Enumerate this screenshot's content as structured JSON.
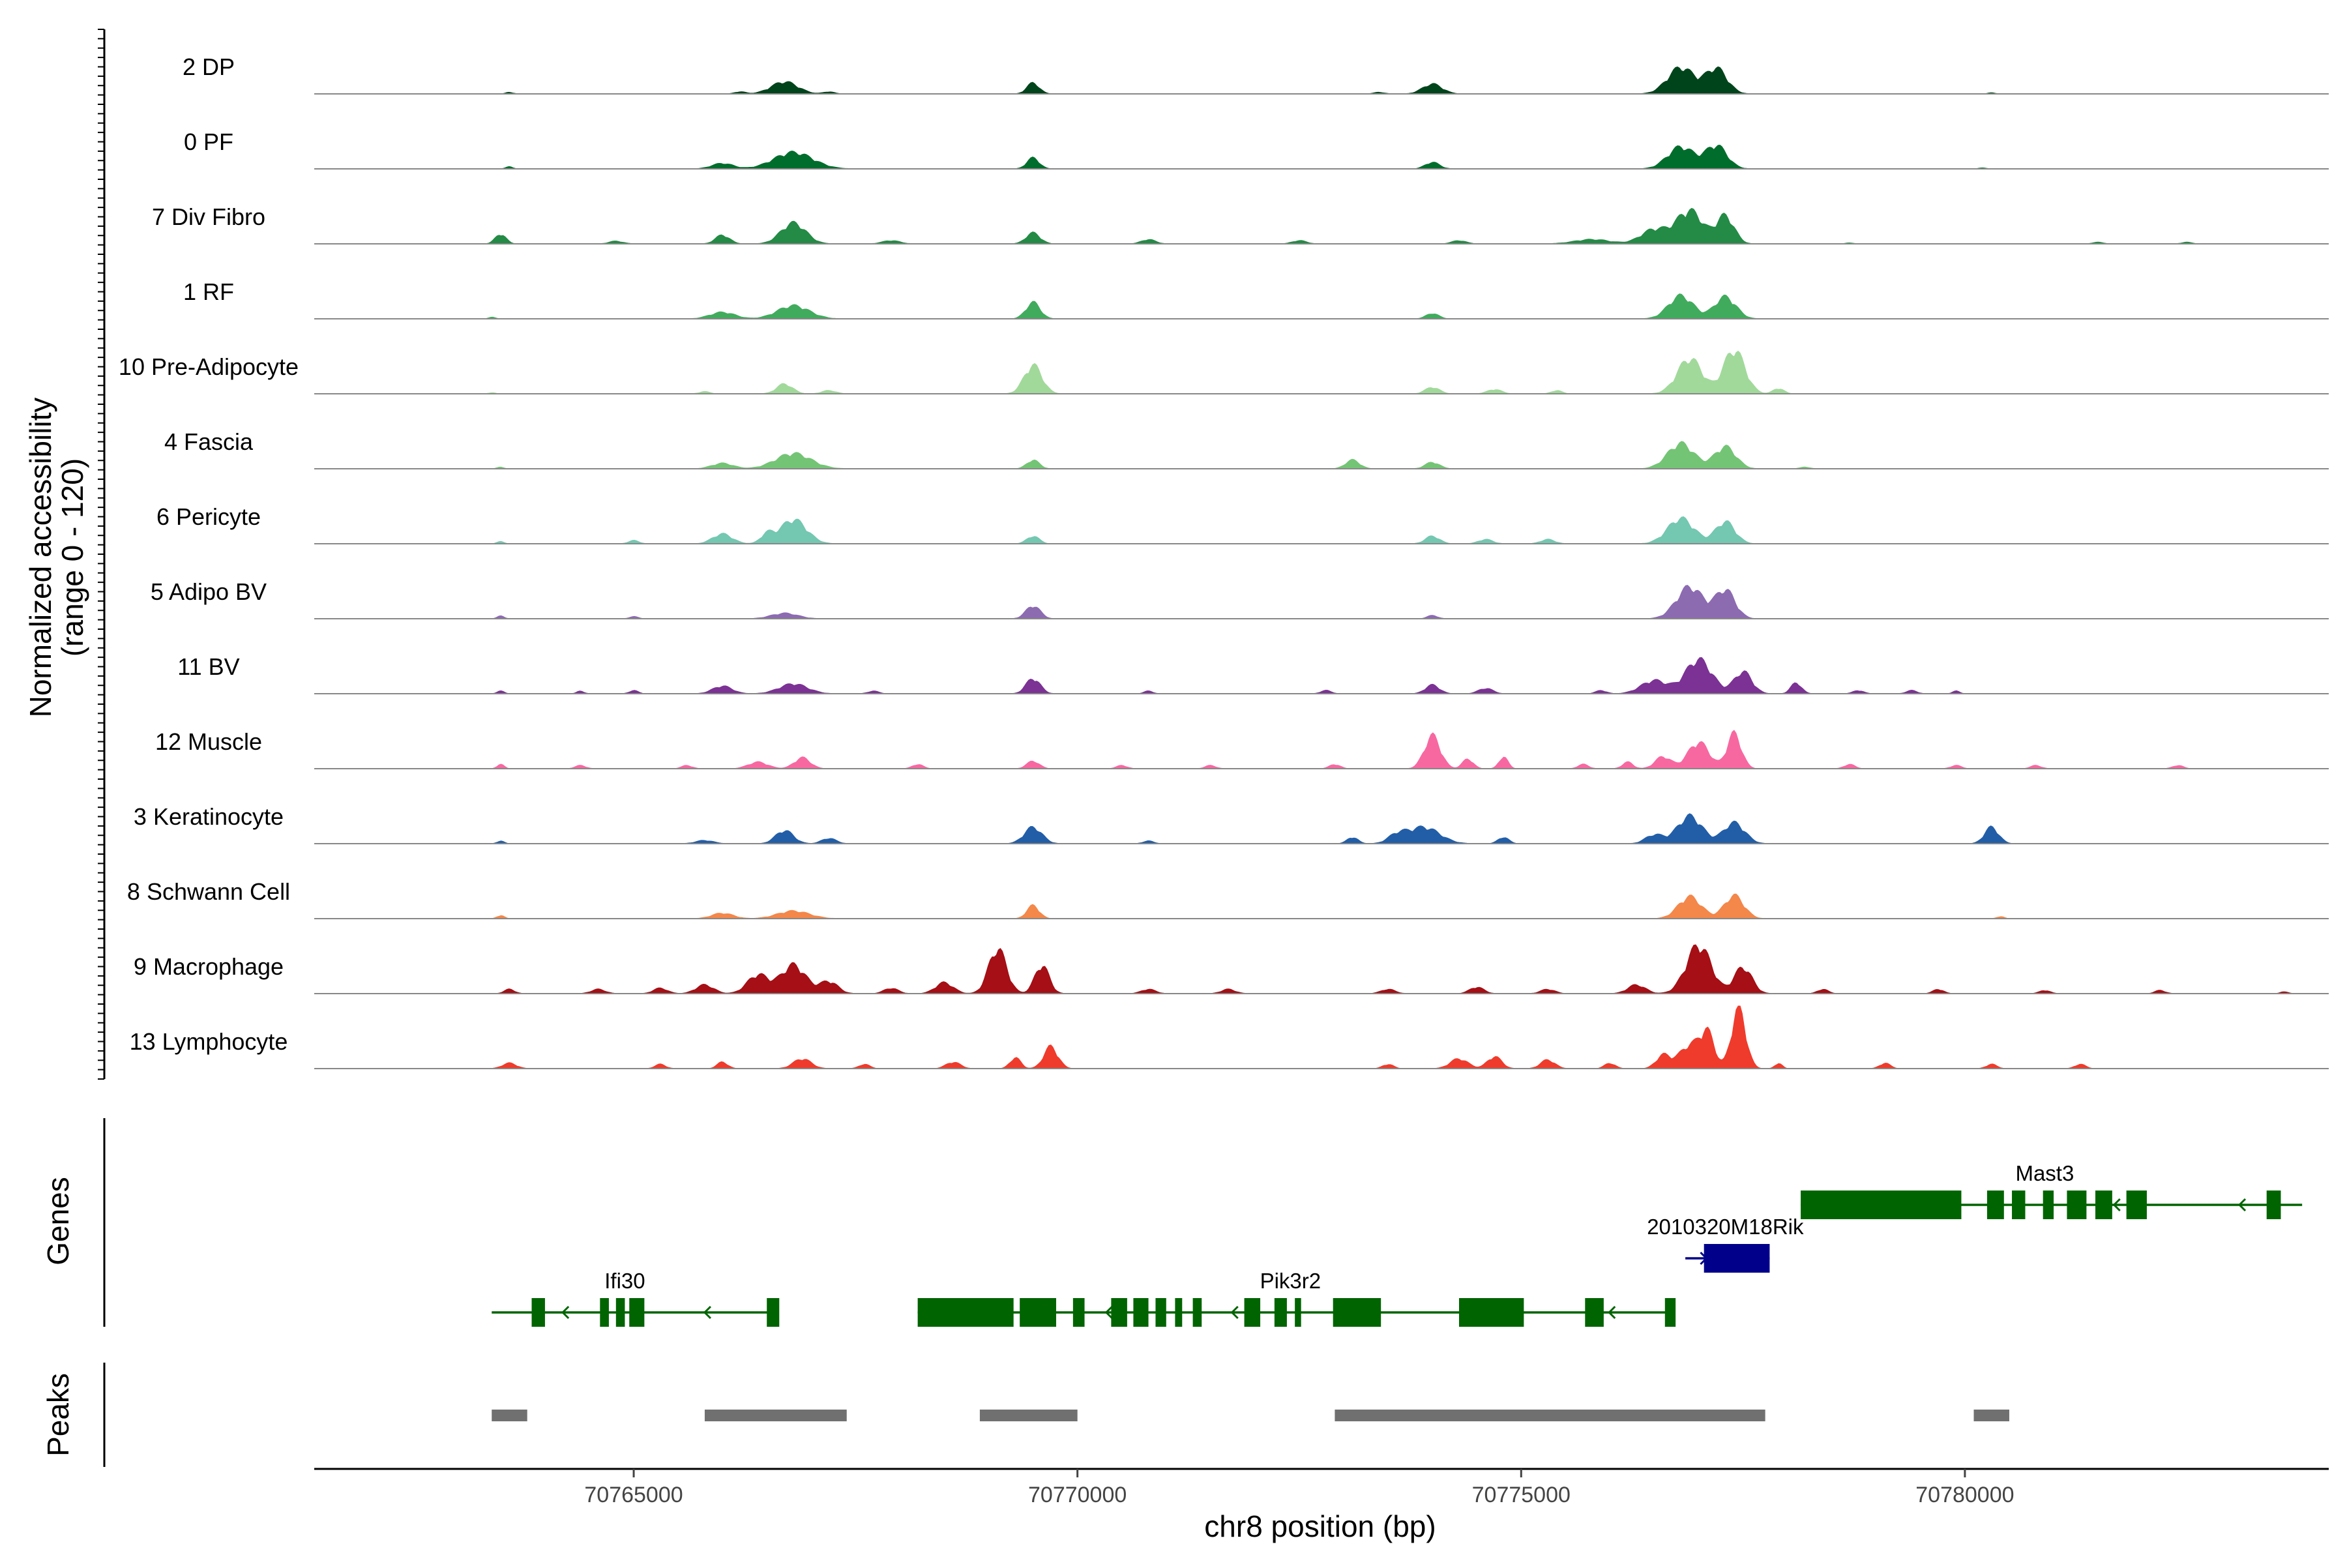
{
  "chart_data": {
    "type": "area",
    "title": "",
    "ylabel": "Normalized accessibility",
    "ylabel_range": "(range 0 - 120)",
    "xlabel": "chr8 position (bp)",
    "xlim": [
      70761400,
      70784100
    ],
    "ylim": [
      0,
      120
    ],
    "x_ticks": [
      70765000,
      70770000,
      70775000,
      70780000
    ],
    "x_tick_labels": [
      "70765000",
      "70770000",
      "70775000",
      "70780000"
    ],
    "tracks": [
      {
        "name": "2 DP",
        "color": "#00441b",
        "peaks": [
          [
            70763600,
            3,
            40
          ],
          [
            70766200,
            4,
            60
          ],
          [
            70766700,
            22,
            150
          ],
          [
            70767200,
            4,
            60
          ],
          [
            70769500,
            20,
            70
          ],
          [
            70773400,
            3,
            60
          ],
          [
            70774000,
            18,
            110
          ],
          [
            70776800,
            48,
            150
          ],
          [
            70777200,
            46,
            120
          ],
          [
            70780300,
            2,
            40
          ]
        ]
      },
      {
        "name": "0 PF",
        "color": "#006d2c",
        "peaks": [
          [
            70763600,
            4,
            40
          ],
          [
            70766000,
            10,
            120
          ],
          [
            70766800,
            30,
            220
          ],
          [
            70769500,
            20,
            70
          ],
          [
            70774000,
            12,
            80
          ],
          [
            70776800,
            40,
            150
          ],
          [
            70777200,
            42,
            120
          ],
          [
            70780200,
            2,
            40
          ]
        ]
      },
      {
        "name": "7 Div Fibro",
        "color": "#238b45",
        "peaks": [
          [
            70763500,
            18,
            60
          ],
          [
            70764800,
            5,
            80
          ],
          [
            70766000,
            16,
            80
          ],
          [
            70766800,
            38,
            140
          ],
          [
            70767900,
            6,
            100
          ],
          [
            70769500,
            20,
            80
          ],
          [
            70770800,
            8,
            80
          ],
          [
            70772500,
            6,
            80
          ],
          [
            70774300,
            6,
            80
          ],
          [
            70775800,
            8,
            200
          ],
          [
            70776500,
            26,
            150
          ],
          [
            70776900,
            60,
            150
          ],
          [
            70777300,
            50,
            100
          ],
          [
            70778700,
            2,
            40
          ],
          [
            70781500,
            3,
            60
          ],
          [
            70782500,
            3,
            60
          ]
        ]
      },
      {
        "name": "1 RF",
        "color": "#41ab5d",
        "peaks": [
          [
            70763400,
            3,
            40
          ],
          [
            70766000,
            12,
            140
          ],
          [
            70766800,
            24,
            180
          ],
          [
            70769500,
            30,
            80
          ],
          [
            70774000,
            10,
            70
          ],
          [
            70776800,
            42,
            140
          ],
          [
            70777300,
            40,
            120
          ]
        ]
      },
      {
        "name": "10 Pre-Adipocyte",
        "color": "#a1d99b",
        "peaks": [
          [
            70763400,
            2,
            40
          ],
          [
            70765800,
            4,
            60
          ],
          [
            70766700,
            18,
            90
          ],
          [
            70767200,
            6,
            80
          ],
          [
            70769500,
            52,
            100
          ],
          [
            70774000,
            12,
            80
          ],
          [
            70774700,
            8,
            80
          ],
          [
            70775400,
            6,
            60
          ],
          [
            70776900,
            64,
            140
          ],
          [
            70777400,
            80,
            120
          ],
          [
            70777900,
            10,
            60
          ]
        ]
      },
      {
        "name": "4 Fascia",
        "color": "#74c476",
        "peaks": [
          [
            70763500,
            3,
            40
          ],
          [
            70766000,
            10,
            120
          ],
          [
            70766800,
            28,
            200
          ],
          [
            70769500,
            16,
            70
          ],
          [
            70773100,
            16,
            80
          ],
          [
            70774000,
            12,
            80
          ],
          [
            70776800,
            46,
            150
          ],
          [
            70777300,
            40,
            120
          ],
          [
            70778200,
            3,
            60
          ]
        ]
      },
      {
        "name": "6 Pericyte",
        "color": "#74c7b1",
        "peaks": [
          [
            70763500,
            4,
            40
          ],
          [
            70765000,
            6,
            60
          ],
          [
            70766000,
            18,
            110
          ],
          [
            70766500,
            16,
            70
          ],
          [
            70766800,
            44,
            150
          ],
          [
            70769500,
            14,
            70
          ],
          [
            70774000,
            14,
            80
          ],
          [
            70774600,
            8,
            80
          ],
          [
            70775300,
            8,
            80
          ],
          [
            70776800,
            46,
            150
          ],
          [
            70777300,
            40,
            110
          ]
        ]
      },
      {
        "name": "5 Adipo BV",
        "color": "#8c6bb1",
        "peaks": [
          [
            70763500,
            5,
            40
          ],
          [
            70765000,
            4,
            50
          ],
          [
            70766700,
            10,
            150
          ],
          [
            70769500,
            24,
            80
          ],
          [
            70774000,
            6,
            60
          ],
          [
            70776900,
            58,
            150
          ],
          [
            70777300,
            52,
            110
          ]
        ]
      },
      {
        "name": "11 BV",
        "color": "#7b3294",
        "peaks": [
          [
            70763500,
            5,
            40
          ],
          [
            70764400,
            5,
            40
          ],
          [
            70765000,
            6,
            50
          ],
          [
            70766000,
            14,
            110
          ],
          [
            70766800,
            18,
            160
          ],
          [
            70767700,
            5,
            60
          ],
          [
            70769500,
            28,
            80
          ],
          [
            70770800,
            5,
            50
          ],
          [
            70772800,
            6,
            60
          ],
          [
            70774000,
            16,
            80
          ],
          [
            70774600,
            10,
            80
          ],
          [
            70775900,
            6,
            60
          ],
          [
            70776500,
            24,
            150
          ],
          [
            70777000,
            62,
            150
          ],
          [
            70777500,
            40,
            100
          ],
          [
            70778100,
            20,
            60
          ],
          [
            70778800,
            6,
            60
          ],
          [
            70779400,
            6,
            60
          ],
          [
            70779900,
            5,
            40
          ]
        ]
      },
      {
        "name": "12 Muscle",
        "color": "#f768a1",
        "peaks": [
          [
            70763500,
            8,
            40
          ],
          [
            70764400,
            6,
            60
          ],
          [
            70765600,
            6,
            60
          ],
          [
            70766400,
            12,
            110
          ],
          [
            70766900,
            20,
            90
          ],
          [
            70768200,
            8,
            60
          ],
          [
            70769500,
            14,
            70
          ],
          [
            70770500,
            6,
            60
          ],
          [
            70771500,
            6,
            60
          ],
          [
            70772900,
            8,
            60
          ],
          [
            70774000,
            60,
            90
          ],
          [
            70774400,
            18,
            60
          ],
          [
            70774800,
            22,
            50
          ],
          [
            70775700,
            8,
            60
          ],
          [
            70776200,
            12,
            60
          ],
          [
            70776600,
            22,
            90
          ],
          [
            70777000,
            48,
            120
          ],
          [
            70777400,
            64,
            80
          ],
          [
            70778700,
            8,
            60
          ],
          [
            70779900,
            6,
            60
          ],
          [
            70780800,
            6,
            60
          ],
          [
            70782400,
            6,
            60
          ]
        ]
      },
      {
        "name": "3 Keratinocyte",
        "color": "#225ea8",
        "peaks": [
          [
            70763500,
            5,
            40
          ],
          [
            70765800,
            6,
            100
          ],
          [
            70766700,
            24,
            100
          ],
          [
            70767200,
            10,
            80
          ],
          [
            70769500,
            30,
            100
          ],
          [
            70770800,
            5,
            60
          ],
          [
            70773100,
            12,
            60
          ],
          [
            70773600,
            14,
            100
          ],
          [
            70773900,
            30,
            180
          ],
          [
            70774800,
            12,
            60
          ],
          [
            70776500,
            16,
            100
          ],
          [
            70776900,
            50,
            140
          ],
          [
            70777400,
            38,
            120
          ],
          [
            70780300,
            30,
            80
          ]
        ]
      },
      {
        "name": "8 Schwann Cell",
        "color": "#f4874a",
        "peaks": [
          [
            70763500,
            6,
            40
          ],
          [
            70766000,
            10,
            120
          ],
          [
            70766800,
            14,
            180
          ],
          [
            70769500,
            24,
            70
          ],
          [
            70776900,
            40,
            130
          ],
          [
            70777400,
            42,
            110
          ],
          [
            70780400,
            4,
            40
          ]
        ]
      },
      {
        "name": "9 Macrophage",
        "color": "#a50f15",
        "peaks": [
          [
            70763600,
            8,
            60
          ],
          [
            70764600,
            8,
            80
          ],
          [
            70765300,
            10,
            80
          ],
          [
            70765800,
            16,
            100
          ],
          [
            70766400,
            34,
            120
          ],
          [
            70766800,
            52,
            140
          ],
          [
            70767200,
            22,
            100
          ],
          [
            70767900,
            10,
            80
          ],
          [
            70768500,
            20,
            100
          ],
          [
            70769100,
            82,
            100
          ],
          [
            70769600,
            52,
            80
          ],
          [
            70770800,
            8,
            80
          ],
          [
            70771700,
            8,
            80
          ],
          [
            70773500,
            8,
            80
          ],
          [
            70774500,
            12,
            80
          ],
          [
            70775300,
            8,
            80
          ],
          [
            70776300,
            16,
            100
          ],
          [
            70777000,
            88,
            140
          ],
          [
            70777500,
            48,
            100
          ],
          [
            70778400,
            8,
            60
          ],
          [
            70779700,
            8,
            60
          ],
          [
            70780900,
            6,
            60
          ],
          [
            70782200,
            6,
            60
          ],
          [
            70783600,
            4,
            40
          ]
        ]
      },
      {
        "name": "13 Lymphocyte",
        "color": "#ef3b2c",
        "peaks": [
          [
            70763600,
            10,
            80
          ],
          [
            70765300,
            8,
            60
          ],
          [
            70766000,
            12,
            60
          ],
          [
            70766900,
            18,
            100
          ],
          [
            70767600,
            8,
            60
          ],
          [
            70768600,
            12,
            80
          ],
          [
            70769300,
            20,
            60
          ],
          [
            70769700,
            40,
            80
          ],
          [
            70773500,
            8,
            60
          ],
          [
            70774300,
            18,
            100
          ],
          [
            70774700,
            22,
            80
          ],
          [
            70775300,
            16,
            80
          ],
          [
            70776000,
            10,
            60
          ],
          [
            70776600,
            24,
            80
          ],
          [
            70776900,
            42,
            120
          ],
          [
            70777100,
            60,
            80
          ],
          [
            70777450,
            110,
            80
          ],
          [
            70777900,
            10,
            40
          ],
          [
            70779100,
            10,
            60
          ],
          [
            70780300,
            8,
            60
          ],
          [
            70781300,
            8,
            60
          ]
        ]
      }
    ],
    "genes": {
      "title": "Genes",
      "color": "#006400",
      "items": [
        {
          "name": "Ifi30",
          "strand": "-",
          "row": 3,
          "start": 70763400,
          "end": 70766600,
          "color": "#006400",
          "exons": [
            [
              70763850,
              70764000
            ],
            [
              70764620,
              70764720
            ],
            [
              70764800,
              70764900
            ],
            [
              70764950,
              70765120
            ],
            [
              70766500,
              70766640
            ]
          ]
        },
        {
          "name": "Pik3r2",
          "strand": "-",
          "row": 3,
          "start": 70768200,
          "end": 70776700,
          "color": "#006400",
          "exons": [
            [
              70768200,
              70769280
            ],
            [
              70769350,
              70769760
            ],
            [
              70769950,
              70770080
            ],
            [
              70770380,
              70770560
            ],
            [
              70770630,
              70770800
            ],
            [
              70770880,
              70771000
            ],
            [
              70771100,
              70771180
            ],
            [
              70771300,
              70771400
            ],
            [
              70771880,
              70772060
            ],
            [
              70772220,
              70772360
            ],
            [
              70772450,
              70772520
            ],
            [
              70772880,
              70773420
            ],
            [
              70774300,
              70775030
            ],
            [
              70775720,
              70775930
            ],
            [
              70776620,
              70776740
            ]
          ]
        },
        {
          "name": "2010320M18Rik",
          "strand": "+",
          "row": 2,
          "start": 70776850,
          "end": 70777800,
          "color": "#00008b",
          "exons": [
            [
              70777060,
              70777800
            ]
          ]
        },
        {
          "name": "Mast3",
          "strand": "-",
          "row": 1,
          "start": 70778150,
          "end": 70783800,
          "color": "#006400",
          "exons": [
            [
              70778150,
              70779960
            ],
            [
              70780250,
              70780440
            ],
            [
              70780530,
              70780680
            ],
            [
              70780880,
              70781000
            ],
            [
              70781150,
              70781370
            ],
            [
              70781470,
              70781660
            ],
            [
              70781820,
              70782050
            ],
            [
              70783400,
              70783560
            ]
          ]
        }
      ]
    },
    "peaks_track": {
      "title": "Peaks",
      "color": "#707070",
      "regions": [
        [
          70763400,
          70763800
        ],
        [
          70765800,
          70767400
        ],
        [
          70768900,
          70770000
        ],
        [
          70772900,
          70777750
        ],
        [
          70780100,
          70780500
        ]
      ]
    }
  }
}
